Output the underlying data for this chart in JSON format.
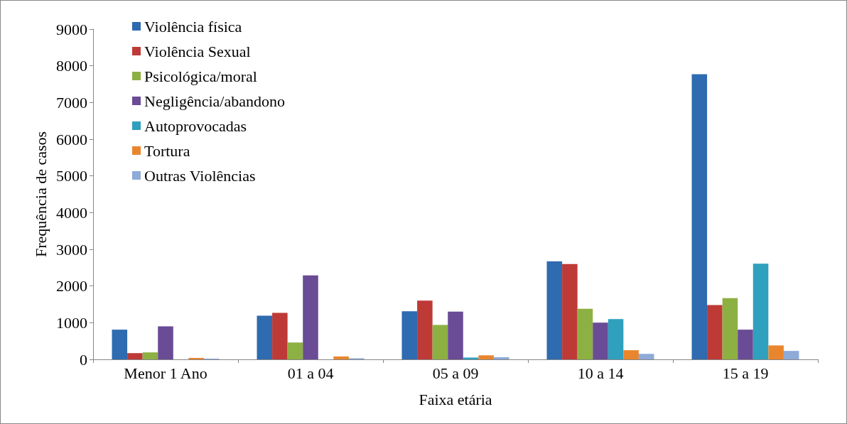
{
  "chart_data": {
    "type": "bar",
    "xlabel": "Faixa etária",
    "ylabel": "Frequência de casos",
    "categories": [
      "Menor 1 Ano",
      "01 a 04",
      "05 a 09",
      "10 a 14",
      "15 a 19"
    ],
    "series": [
      {
        "name": "Violência física",
        "color": "#2e6bb0",
        "values": [
          810,
          1190,
          1310,
          2670,
          7770
        ]
      },
      {
        "name": "Violência Sexual",
        "color": "#be3a36",
        "values": [
          170,
          1270,
          1600,
          2600,
          1480
        ]
      },
      {
        "name": "Psicológica/moral",
        "color": "#8db043",
        "values": [
          190,
          460,
          940,
          1380,
          1670
        ]
      },
      {
        "name": "Negligência/abandono",
        "color": "#6a4b95",
        "values": [
          900,
          2290,
          1300,
          1000,
          810
        ]
      },
      {
        "name": "Autoprovocadas",
        "color": "#2fa0bd",
        "values": [
          null,
          null,
          50,
          1100,
          2610
        ]
      },
      {
        "name": "Tortura",
        "color": "#e9862d",
        "values": [
          40,
          80,
          110,
          250,
          380
        ]
      },
      {
        "name": "Outras Violências",
        "color": "#8eaad8",
        "values": [
          20,
          30,
          60,
          150,
          230
        ]
      }
    ],
    "ylim": [
      0,
      9000
    ],
    "yticks": [
      0,
      1000,
      2000,
      3000,
      4000,
      5000,
      6000,
      7000,
      8000,
      9000
    ],
    "grid": false,
    "legend": "top left"
  }
}
